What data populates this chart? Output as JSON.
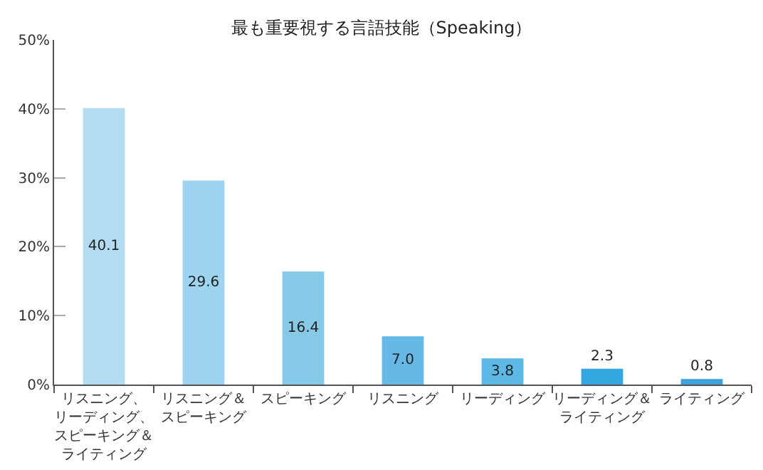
{
  "chart_data": {
    "type": "bar",
    "title": "最も重要視する言語技能（Speaking）",
    "categories": [
      "リスニング、リーディング、スピーキング＆ライティング",
      "リスニング＆スピーキング",
      "スピーキング",
      "リスニング",
      "リーディング",
      "リーディング＆ライティング",
      "ライティング"
    ],
    "values": [
      40.1,
      29.6,
      16.4,
      7.0,
      3.8,
      2.3,
      0.8
    ],
    "value_labels": [
      "40.1",
      "29.6",
      "16.4",
      "7.0",
      "3.8",
      "2.3",
      "0.8"
    ],
    "colors": [
      "#b3dcf2",
      "#9ed4f0",
      "#88c9e8",
      "#66b9e6",
      "#5cb8e4",
      "#34a6e0",
      "#3ba2dc"
    ],
    "ylim": [
      0,
      50
    ],
    "yticks": [
      {
        "value": 0,
        "label": "0%"
      },
      {
        "value": 10,
        "label": "10%"
      },
      {
        "value": 20,
        "label": "20%"
      },
      {
        "value": 30,
        "label": "30%"
      },
      {
        "value": 40,
        "label": "40%"
      },
      {
        "value": 50,
        "label": "50%"
      }
    ],
    "grid": false,
    "legend": false
  }
}
